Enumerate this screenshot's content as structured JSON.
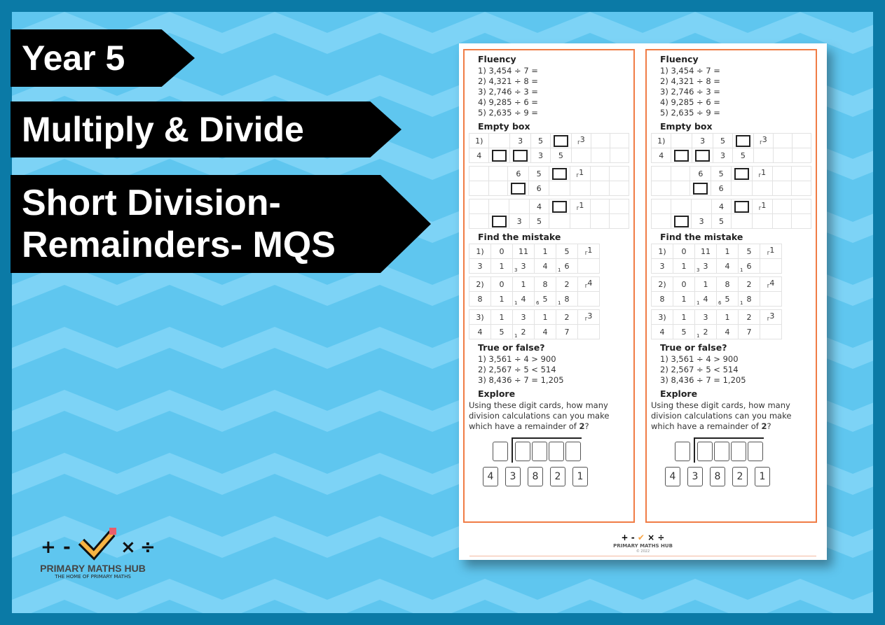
{
  "banners": {
    "year": "Year 5",
    "topic": "Multiply & Divide",
    "title": "Short Division- Remainders- MQS"
  },
  "logo": {
    "name": "PRIMARY MATHS HUB",
    "tagline": "THE HOME OF PRIMARY MATHS",
    "symbols": [
      "+",
      "-",
      "×",
      "÷"
    ]
  },
  "worksheet": {
    "fluency": {
      "heading": "Fluency",
      "items": [
        "1) 3,454 ÷ 7 =",
        "2) 4,321 ÷ 8 =",
        "3) 2,746 ÷ 3 =",
        "4) 9,285 ÷ 6 =",
        "5) 2,635 ÷ 9 ="
      ]
    },
    "empty_box": {
      "heading": "Empty box",
      "problems": [
        {
          "top": [
            "1)",
            "",
            "3",
            "5",
            "[]",
            "r3",
            "",
            ""
          ],
          "bottom": [
            "4",
            "[]",
            "[]",
            "3",
            "5",
            "",
            "",
            ""
          ]
        },
        {
          "top": [
            "",
            "",
            "6",
            "5",
            "[]",
            "r1",
            "",
            ""
          ],
          "bottom": [
            "",
            "",
            "[]",
            "6",
            "",
            "",
            "",
            ""
          ]
        },
        {
          "top": [
            "",
            "",
            "",
            "4",
            "[]",
            "r1",
            "",
            ""
          ],
          "bottom": [
            "",
            "[]",
            "3",
            "5",
            "",
            "",
            "",
            ""
          ]
        }
      ]
    },
    "find_mistake": {
      "heading": "Find the mistake",
      "problems": [
        {
          "top": [
            "1)",
            "0",
            "11",
            "1",
            "5",
            "r1"
          ],
          "bottom": [
            "3",
            "1",
            "3",
            "4",
            "6",
            ""
          ],
          "carries": [
            "",
            "",
            "3",
            "",
            "1",
            ""
          ]
        },
        {
          "top": [
            "2)",
            "0",
            "1",
            "8",
            "2",
            "r4"
          ],
          "bottom": [
            "8",
            "1",
            "4",
            "5",
            "8",
            ""
          ],
          "carries": [
            "",
            "",
            "1",
            "6",
            "1",
            ""
          ]
        },
        {
          "top": [
            "3)",
            "1",
            "3",
            "1",
            "2",
            "r3"
          ],
          "bottom": [
            "4",
            "5",
            "2",
            "4",
            "7",
            ""
          ],
          "carries": [
            "",
            "",
            "1",
            "",
            "",
            ""
          ]
        }
      ]
    },
    "true_false": {
      "heading": "True or false?",
      "items": [
        "1) 3,561 ÷ 4 > 900",
        "2) 2,567 ÷ 5 < 514",
        "3) 8,436 ÷ 7 = 1,205"
      ]
    },
    "explore": {
      "heading": "Explore",
      "text_before": "Using these digit cards, how many division calculations can you make which have a remainder of ",
      "bold": "2",
      "text_after": "?",
      "cards": [
        "4",
        "3",
        "8",
        "2",
        "1"
      ]
    },
    "footer": {
      "name": "PRIMARY MATHS HUB",
      "copyright": "© 2022"
    }
  },
  "colors": {
    "border": "#0b7aa6",
    "background": "#5fc6ef",
    "chevron": "#7dd3f6",
    "accent": "#f07c45"
  }
}
